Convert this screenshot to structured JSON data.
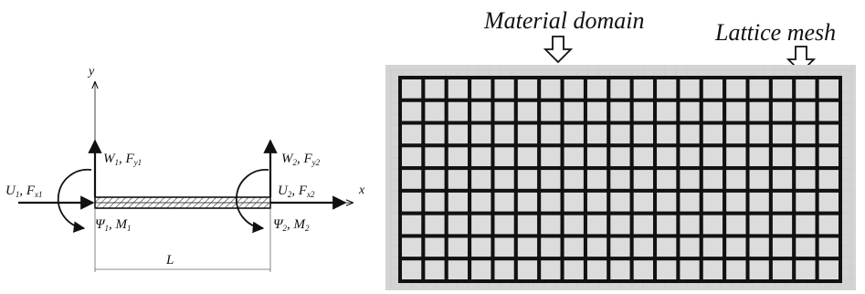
{
  "beam": {
    "axis_y": "y",
    "axis_x": "x",
    "node1": {
      "w": "W",
      "w_sub": "1",
      "fy": "F",
      "fy_sub": "y1",
      "u": "U",
      "u_sub": "1",
      "fx": "F",
      "fx_sub": "x1",
      "psi": "Ψ",
      "psi_sub": "1",
      "m": "M",
      "m_sub": "1"
    },
    "node2": {
      "w": "W",
      "w_sub": "2",
      "fy": "F",
      "fy_sub": "y2",
      "u": "U",
      "u_sub": "2",
      "fx": "F",
      "fx_sub": "x2",
      "psi": "Ψ",
      "psi_sub": "2",
      "m": "M",
      "m_sub": "2"
    },
    "length_label": "L"
  },
  "lattice": {
    "material_domain_label": "Material domain",
    "lattice_mesh_label": "Lattice mesh",
    "columns": 19,
    "rows": 9,
    "colors": {
      "domain_background": "#d4d4d4",
      "cell_fill": "#dcdcdc",
      "mesh_line": "#111111"
    }
  }
}
